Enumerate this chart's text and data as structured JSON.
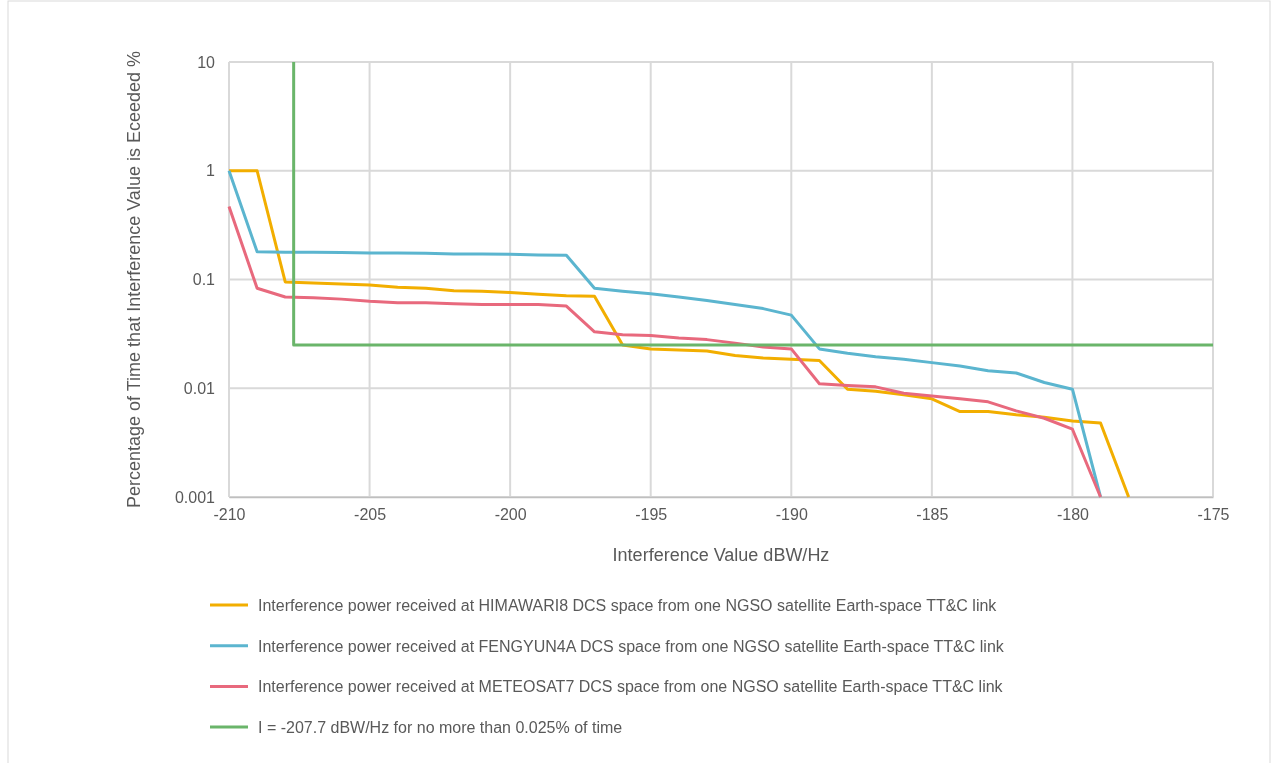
{
  "chart_data": {
    "type": "line",
    "xlabel": "Interference Value dBW/Hz",
    "ylabel": "Percentage of Time that Interference Value is Eceeded %",
    "x": [
      -210,
      -209,
      -208,
      -207,
      -206,
      -205,
      -204,
      -203,
      -202,
      -201,
      -200,
      -199,
      -198,
      -197,
      -196,
      -195,
      -194,
      -193,
      -192,
      -191,
      -190,
      -189,
      -188,
      -187,
      -186,
      -185,
      -184,
      -183,
      -182,
      -181,
      -180,
      -179,
      -178
    ],
    "series": [
      {
        "name": "Interference power received at HIMAWARI8 DCS space from one NGSO satellite Earth-space TT&C link",
        "color": "#f2ae00",
        "values": [
          1,
          1,
          0.095,
          0.093,
          0.091,
          0.089,
          0.085,
          0.083,
          0.079,
          0.078,
          0.076,
          0.073,
          0.071,
          0.07,
          0.025,
          0.023,
          0.0225,
          0.022,
          0.02,
          0.019,
          0.0185,
          0.018,
          0.0098,
          0.0094,
          0.0087,
          0.008,
          0.0061,
          0.0061,
          0.0057,
          0.0054,
          0.005,
          0.0048,
          0.001
        ]
      },
      {
        "name": "Interference power received at FENGYUN4A DCS space from one NGSO satellite Earth-space TT&C link",
        "color": "#5bb5cf",
        "x": [
          -210,
          -209,
          -208,
          -207,
          -206,
          -205,
          -204,
          -203,
          -202,
          -201,
          -200,
          -199,
          -198,
          -197,
          -196,
          -195,
          -194,
          -193,
          -192,
          -191,
          -190,
          -189,
          -188,
          -187,
          -186,
          -185,
          -184,
          -183,
          -182,
          -181,
          -180,
          -179
        ],
        "values": [
          1,
          0.18,
          0.178,
          0.178,
          0.177,
          0.175,
          0.175,
          0.174,
          0.172,
          0.172,
          0.171,
          0.168,
          0.167,
          0.083,
          0.078,
          0.074,
          0.069,
          0.064,
          0.059,
          0.054,
          0.047,
          0.023,
          0.021,
          0.0195,
          0.0185,
          0.0172,
          0.016,
          0.0145,
          0.0138,
          0.0113,
          0.0098,
          0.001
        ]
      },
      {
        "name": "Interference power received at METEOSAT7 DCS space from one NGSO satellite Earth-space TT&C link",
        "color": "#e8697d",
        "x": [
          -210,
          -209,
          -208,
          -207,
          -206,
          -205,
          -204,
          -203,
          -202,
          -201,
          -200,
          -199,
          -198,
          -197,
          -196,
          -195,
          -194,
          -193,
          -192,
          -191,
          -190,
          -189,
          -188,
          -187,
          -186,
          -185,
          -184,
          -183,
          -182,
          -181,
          -180,
          -179
        ],
        "values": [
          0.47,
          0.083,
          0.069,
          0.068,
          0.066,
          0.063,
          0.061,
          0.061,
          0.06,
          0.059,
          0.059,
          0.059,
          0.057,
          0.033,
          0.031,
          0.0305,
          0.029,
          0.028,
          0.026,
          0.024,
          0.023,
          0.011,
          0.0106,
          0.0103,
          0.009,
          0.0085,
          0.008,
          0.0075,
          0.0062,
          0.0053,
          0.0042,
          0.001
        ]
      },
      {
        "name": "I = -207.7 dBW/Hz for no more than 0.025% of time",
        "color": "#6ab56a",
        "x": [
          -207.7,
          -207.7,
          -175
        ],
        "values": [
          10,
          0.025,
          0.025
        ]
      }
    ],
    "xlim": [
      -210,
      -175
    ],
    "xticks": [
      -210,
      -205,
      -200,
      -195,
      -190,
      -185,
      -180,
      -175
    ],
    "ylim": [
      0.001,
      10
    ],
    "yticks": [
      0.001,
      0.01,
      0.1,
      1,
      10
    ],
    "log": "y",
    "grid": true,
    "legend": "bottom",
    "marker": "none",
    "line_style": "solid"
  }
}
